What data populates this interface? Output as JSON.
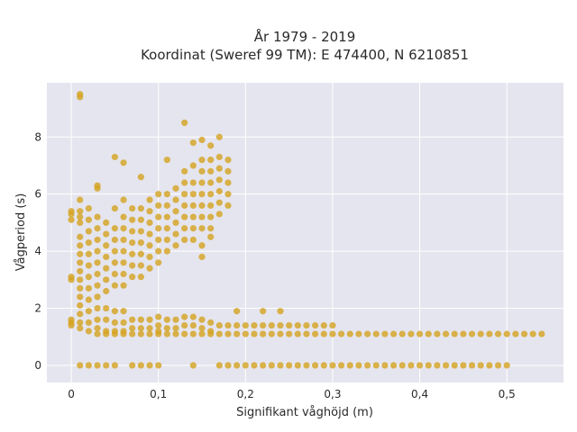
{
  "chart_data": {
    "type": "scatter",
    "title": "År 1979 - 2019",
    "subtitle": "Koordinat (Sweref 99 TM): E 474400, N 6210851",
    "xlabel": "Signifikant våghöjd (m)",
    "ylabel": "Vågperiod (s)",
    "xlim": [
      -0.028,
      0.565
    ],
    "ylim": [
      -0.6,
      9.9
    ],
    "xticks": [
      0,
      0.1,
      0.2,
      0.3,
      0.4,
      0.5
    ],
    "xtick_labels": [
      "0",
      "0,1",
      "0,2",
      "0,3",
      "0,4",
      "0,5"
    ],
    "yticks": [
      0,
      2,
      4,
      6,
      8
    ],
    "ytick_labels": [
      "0",
      "2",
      "4",
      "6",
      "8"
    ],
    "grid": true,
    "legend": "none",
    "marker_color": "#d4a31f",
    "background_color": "#e5e5ef",
    "series": [
      {
        "points": [
          [
            0,
            1.4
          ],
          [
            0,
            1.5
          ],
          [
            0,
            1.6
          ],
          [
            0,
            3.0
          ],
          [
            0,
            3.1
          ],
          [
            0,
            5.1
          ],
          [
            0,
            5.3
          ],
          [
            0,
            5.4
          ],
          [
            0.01,
            9.4
          ],
          [
            0.01,
            9.5
          ],
          [
            0.01,
            5.8
          ],
          [
            0.01,
            5.4
          ],
          [
            0.01,
            5.2
          ],
          [
            0.01,
            5.0
          ],
          [
            0.01,
            4.5
          ],
          [
            0.01,
            4.2
          ],
          [
            0.01,
            3.9
          ],
          [
            0.01,
            3.6
          ],
          [
            0.01,
            3.3
          ],
          [
            0.01,
            3.0
          ],
          [
            0.01,
            2.7
          ],
          [
            0.01,
            2.4
          ],
          [
            0.01,
            2.1
          ],
          [
            0.01,
            1.8
          ],
          [
            0.01,
            1.5
          ],
          [
            0.01,
            1.3
          ],
          [
            0.01,
            0
          ],
          [
            0.02,
            5.5
          ],
          [
            0.02,
            5.1
          ],
          [
            0.02,
            4.7
          ],
          [
            0.02,
            4.3
          ],
          [
            0.02,
            3.9
          ],
          [
            0.02,
            3.5
          ],
          [
            0.02,
            3.1
          ],
          [
            0.02,
            2.7
          ],
          [
            0.02,
            2.3
          ],
          [
            0.02,
            1.9
          ],
          [
            0.02,
            1.5
          ],
          [
            0.02,
            1.2
          ],
          [
            0.02,
            0
          ],
          [
            0.03,
            6.2
          ],
          [
            0.03,
            6.3
          ],
          [
            0.03,
            5.2
          ],
          [
            0.03,
            4.8
          ],
          [
            0.03,
            4.4
          ],
          [
            0.03,
            4.0
          ],
          [
            0.03,
            3.6
          ],
          [
            0.03,
            3.2
          ],
          [
            0.03,
            2.8
          ],
          [
            0.03,
            2.4
          ],
          [
            0.03,
            2.0
          ],
          [
            0.03,
            1.6
          ],
          [
            0.03,
            1.3
          ],
          [
            0.03,
            1.1
          ],
          [
            0.03,
            0
          ],
          [
            0.04,
            5.0
          ],
          [
            0.04,
            4.6
          ],
          [
            0.04,
            4.2
          ],
          [
            0.04,
            3.8
          ],
          [
            0.04,
            3.4
          ],
          [
            0.04,
            3.0
          ],
          [
            0.04,
            2.6
          ],
          [
            0.04,
            2.0
          ],
          [
            0.04,
            1.6
          ],
          [
            0.04,
            1.2
          ],
          [
            0.04,
            1.1
          ],
          [
            0.04,
            0
          ],
          [
            0.05,
            7.3
          ],
          [
            0.05,
            5.5
          ],
          [
            0.05,
            4.8
          ],
          [
            0.05,
            4.4
          ],
          [
            0.05,
            4.0
          ],
          [
            0.05,
            3.6
          ],
          [
            0.05,
            3.2
          ],
          [
            0.05,
            2.8
          ],
          [
            0.05,
            1.9
          ],
          [
            0.05,
            1.5
          ],
          [
            0.05,
            1.2
          ],
          [
            0.05,
            1.1
          ],
          [
            0.05,
            0
          ],
          [
            0.06,
            7.1
          ],
          [
            0.06,
            5.8
          ],
          [
            0.06,
            5.2
          ],
          [
            0.06,
            4.8
          ],
          [
            0.06,
            4.4
          ],
          [
            0.06,
            4.0
          ],
          [
            0.06,
            3.6
          ],
          [
            0.06,
            3.2
          ],
          [
            0.06,
            2.8
          ],
          [
            0.06,
            1.9
          ],
          [
            0.06,
            1.5
          ],
          [
            0.06,
            1.2
          ],
          [
            0.06,
            1.1
          ],
          [
            0.07,
            5.5
          ],
          [
            0.07,
            5.1
          ],
          [
            0.07,
            4.7
          ],
          [
            0.07,
            4.3
          ],
          [
            0.07,
            3.9
          ],
          [
            0.07,
            3.5
          ],
          [
            0.07,
            3.1
          ],
          [
            0.07,
            1.6
          ],
          [
            0.07,
            1.3
          ],
          [
            0.07,
            1.1
          ],
          [
            0.07,
            0
          ],
          [
            0.08,
            6.6
          ],
          [
            0.08,
            5.5
          ],
          [
            0.08,
            5.1
          ],
          [
            0.08,
            4.7
          ],
          [
            0.08,
            4.3
          ],
          [
            0.08,
            3.9
          ],
          [
            0.08,
            3.5
          ],
          [
            0.08,
            3.1
          ],
          [
            0.08,
            1.6
          ],
          [
            0.08,
            1.3
          ],
          [
            0.08,
            1.1
          ],
          [
            0.08,
            0
          ],
          [
            0.09,
            5.8
          ],
          [
            0.09,
            5.4
          ],
          [
            0.09,
            5.0
          ],
          [
            0.09,
            4.6
          ],
          [
            0.09,
            4.2
          ],
          [
            0.09,
            3.8
          ],
          [
            0.09,
            3.4
          ],
          [
            0.09,
            1.6
          ],
          [
            0.09,
            1.3
          ],
          [
            0.09,
            1.1
          ],
          [
            0.09,
            0
          ],
          [
            0.1,
            6.0
          ],
          [
            0.1,
            5.6
          ],
          [
            0.1,
            5.2
          ],
          [
            0.1,
            4.8
          ],
          [
            0.1,
            4.4
          ],
          [
            0.1,
            4.0
          ],
          [
            0.1,
            3.6
          ],
          [
            0.1,
            1.7
          ],
          [
            0.1,
            1.4
          ],
          [
            0.1,
            1.2
          ],
          [
            0.1,
            1.1
          ],
          [
            0.1,
            0
          ],
          [
            0.11,
            7.2
          ],
          [
            0.11,
            6.0
          ],
          [
            0.11,
            5.6
          ],
          [
            0.11,
            5.2
          ],
          [
            0.11,
            4.8
          ],
          [
            0.11,
            4.4
          ],
          [
            0.11,
            4.0
          ],
          [
            0.11,
            1.6
          ],
          [
            0.11,
            1.3
          ],
          [
            0.11,
            1.1
          ],
          [
            0.12,
            6.2
          ],
          [
            0.12,
            5.8
          ],
          [
            0.12,
            5.4
          ],
          [
            0.12,
            5.0
          ],
          [
            0.12,
            4.6
          ],
          [
            0.12,
            4.2
          ],
          [
            0.12,
            1.6
          ],
          [
            0.12,
            1.3
          ],
          [
            0.12,
            1.1
          ],
          [
            0.13,
            8.5
          ],
          [
            0.13,
            6.8
          ],
          [
            0.13,
            6.4
          ],
          [
            0.13,
            6.0
          ],
          [
            0.13,
            5.6
          ],
          [
            0.13,
            5.2
          ],
          [
            0.13,
            4.8
          ],
          [
            0.13,
            4.4
          ],
          [
            0.13,
            1.7
          ],
          [
            0.13,
            1.4
          ],
          [
            0.13,
            1.1
          ],
          [
            0.14,
            7.8
          ],
          [
            0.14,
            7.0
          ],
          [
            0.14,
            6.4
          ],
          [
            0.14,
            6.0
          ],
          [
            0.14,
            5.6
          ],
          [
            0.14,
            5.2
          ],
          [
            0.14,
            4.8
          ],
          [
            0.14,
            4.4
          ],
          [
            0.14,
            1.7
          ],
          [
            0.14,
            1.4
          ],
          [
            0.14,
            1.1
          ],
          [
            0.14,
            0
          ],
          [
            0.15,
            7.9
          ],
          [
            0.15,
            7.2
          ],
          [
            0.15,
            6.8
          ],
          [
            0.15,
            6.4
          ],
          [
            0.15,
            6.0
          ],
          [
            0.15,
            5.6
          ],
          [
            0.15,
            5.2
          ],
          [
            0.15,
            4.8
          ],
          [
            0.15,
            4.2
          ],
          [
            0.15,
            3.8
          ],
          [
            0.15,
            1.6
          ],
          [
            0.15,
            1.3
          ],
          [
            0.15,
            1.1
          ],
          [
            0.16,
            7.7
          ],
          [
            0.16,
            7.2
          ],
          [
            0.16,
            6.8
          ],
          [
            0.16,
            6.4
          ],
          [
            0.16,
            6.0
          ],
          [
            0.16,
            5.6
          ],
          [
            0.16,
            5.2
          ],
          [
            0.16,
            4.8
          ],
          [
            0.16,
            4.5
          ],
          [
            0.16,
            1.5
          ],
          [
            0.16,
            1.2
          ],
          [
            0.16,
            1.1
          ],
          [
            0.17,
            8.0
          ],
          [
            0.17,
            7.3
          ],
          [
            0.17,
            6.9
          ],
          [
            0.17,
            6.5
          ],
          [
            0.17,
            6.1
          ],
          [
            0.17,
            5.7
          ],
          [
            0.17,
            5.3
          ],
          [
            0.17,
            1.4
          ],
          [
            0.17,
            1.1
          ],
          [
            0.17,
            0
          ],
          [
            0.18,
            7.2
          ],
          [
            0.18,
            6.8
          ],
          [
            0.18,
            6.4
          ],
          [
            0.18,
            6.0
          ],
          [
            0.18,
            5.6
          ],
          [
            0.18,
            1.4
          ],
          [
            0.18,
            1.1
          ],
          [
            0.18,
            0
          ],
          [
            0.19,
            1.4
          ],
          [
            0.19,
            1.1
          ],
          [
            0.19,
            1.9
          ],
          [
            0.19,
            0
          ],
          [
            0.2,
            1.4
          ],
          [
            0.2,
            1.1
          ],
          [
            0.2,
            0
          ],
          [
            0.21,
            1.4
          ],
          [
            0.21,
            1.1
          ],
          [
            0.21,
            0
          ],
          [
            0.22,
            1.9
          ],
          [
            0.22,
            1.4
          ],
          [
            0.22,
            1.1
          ],
          [
            0.22,
            0
          ],
          [
            0.23,
            1.4
          ],
          [
            0.23,
            1.1
          ],
          [
            0.23,
            0
          ],
          [
            0.24,
            1.9
          ],
          [
            0.24,
            1.4
          ],
          [
            0.24,
            1.1
          ],
          [
            0.24,
            0
          ],
          [
            0.25,
            1.4
          ],
          [
            0.25,
            1.1
          ],
          [
            0.25,
            0
          ],
          [
            0.26,
            1.4
          ],
          [
            0.26,
            1.1
          ],
          [
            0.26,
            0
          ],
          [
            0.27,
            1.4
          ],
          [
            0.27,
            1.1
          ],
          [
            0.27,
            0
          ],
          [
            0.28,
            1.4
          ],
          [
            0.28,
            1.1
          ],
          [
            0.28,
            0
          ],
          [
            0.29,
            1.4
          ],
          [
            0.29,
            1.1
          ],
          [
            0.29,
            0
          ],
          [
            0.3,
            1.4
          ],
          [
            0.3,
            1.1
          ],
          [
            0.3,
            0
          ],
          [
            0.31,
            1.1
          ],
          [
            0.31,
            0
          ],
          [
            0.32,
            1.1
          ],
          [
            0.32,
            0
          ],
          [
            0.33,
            1.1
          ],
          [
            0.33,
            0
          ],
          [
            0.34,
            1.1
          ],
          [
            0.34,
            0
          ],
          [
            0.35,
            1.1
          ],
          [
            0.35,
            0
          ],
          [
            0.36,
            1.1
          ],
          [
            0.36,
            0
          ],
          [
            0.37,
            1.1
          ],
          [
            0.37,
            0
          ],
          [
            0.38,
            1.1
          ],
          [
            0.38,
            0
          ],
          [
            0.39,
            1.1
          ],
          [
            0.39,
            0
          ],
          [
            0.4,
            1.1
          ],
          [
            0.4,
            0
          ],
          [
            0.41,
            1.1
          ],
          [
            0.41,
            0
          ],
          [
            0.42,
            1.1
          ],
          [
            0.42,
            0
          ],
          [
            0.43,
            1.1
          ],
          [
            0.43,
            0
          ],
          [
            0.44,
            1.1
          ],
          [
            0.44,
            0
          ],
          [
            0.45,
            1.1
          ],
          [
            0.45,
            0
          ],
          [
            0.46,
            1.1
          ],
          [
            0.46,
            0
          ],
          [
            0.47,
            1.1
          ],
          [
            0.47,
            0
          ],
          [
            0.48,
            1.1
          ],
          [
            0.48,
            0
          ],
          [
            0.49,
            1.1
          ],
          [
            0.49,
            0
          ],
          [
            0.5,
            1.1
          ],
          [
            0.5,
            0
          ],
          [
            0.51,
            1.1
          ],
          [
            0.52,
            1.1
          ],
          [
            0.53,
            1.1
          ],
          [
            0.54,
            1.1
          ]
        ]
      }
    ]
  }
}
